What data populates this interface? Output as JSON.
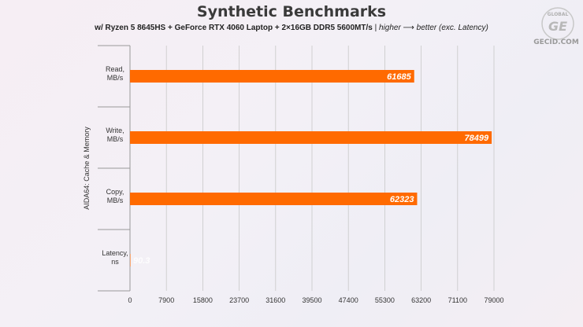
{
  "title": "Synthetic Benchmarks",
  "subtitle": {
    "config": "w/ Ryzen 5 8645HS + GeForce RTX 4060 Laptop + 2×16GB DDR5 5600MT/s",
    "separator": " | ",
    "note": "higher ⟶ better (exc. Latency)"
  },
  "logo": {
    "text": "GECID.COM",
    "ring_text": "GLOBAL"
  },
  "colors": {
    "bar": "#ff6a00",
    "grid": "#c8c8c8",
    "text": "#333333"
  },
  "chart_data": {
    "type": "bar",
    "orientation": "horizontal",
    "group_label": "AIDA64: Cache & Memory",
    "categories": [
      "Read,\nMB/s",
      "Write,\nMB/s",
      "Copy,\nMB/s",
      "Latency,\nns"
    ],
    "values": [
      61685,
      78499,
      62323,
      90.3
    ],
    "labels": [
      "61685",
      "78499",
      "62323",
      "90.3"
    ],
    "xlim": [
      0,
      79000
    ],
    "xticks": [
      "0",
      "7900",
      "15800",
      "23700",
      "31600",
      "39500",
      "47400",
      "55300",
      "63200",
      "71100",
      "79000"
    ],
    "grid": true
  }
}
